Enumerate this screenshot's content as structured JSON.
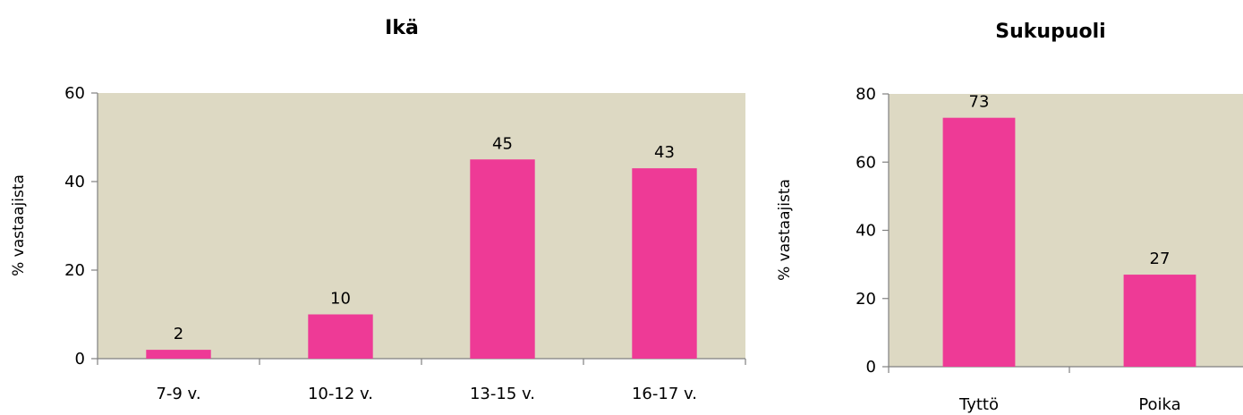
{
  "chart_data": [
    {
      "type": "bar",
      "title": "Ikä",
      "ylabel": "% vastaajista",
      "xlabel": "",
      "categories": [
        "7-9 v.",
        "10-12 v.",
        "13-15 v.",
        "16-17 v."
      ],
      "values": [
        2,
        10,
        45,
        43
      ],
      "ylim": [
        0,
        60
      ],
      "yticks": [
        "0",
        "20",
        "40",
        "60"
      ],
      "bar_color": "#ee3a96",
      "plot_background": "#ddd9c3",
      "grid": false,
      "legend": "none"
    },
    {
      "type": "bar",
      "title": "Sukupuoli",
      "ylabel": "% vastaajista",
      "xlabel": "",
      "categories": [
        "Tyttö",
        "Poika"
      ],
      "values": [
        73,
        27
      ],
      "ylim": [
        0,
        80
      ],
      "yticks": [
        "0",
        "20",
        "40",
        "60",
        "80"
      ],
      "bar_color": "#ee3a96",
      "plot_background": "#ddd9c3",
      "grid": false,
      "legend": "none"
    }
  ]
}
